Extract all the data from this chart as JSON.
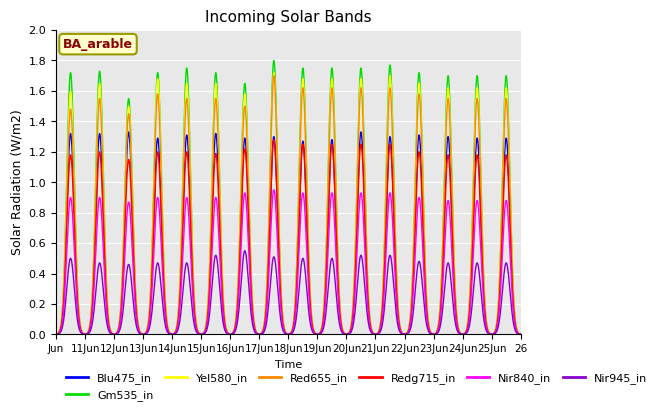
{
  "title": "Incoming Solar Bands",
  "xlabel": "Time",
  "ylabel": "Solar Radiation (W/m2)",
  "annotation": "BA_arable",
  "ylim": [
    0.0,
    2.0
  ],
  "yticks": [
    0.0,
    0.2,
    0.4,
    0.6,
    0.8,
    1.0,
    1.2,
    1.4,
    1.6,
    1.8,
    2.0
  ],
  "series": [
    {
      "name": "Blu475_in",
      "color": "#0000FF",
      "lw": 1.0
    },
    {
      "name": "Gm535_in",
      "color": "#00DD00",
      "lw": 1.0
    },
    {
      "name": "Yel580_in",
      "color": "#FFFF00",
      "lw": 1.0
    },
    {
      "name": "Red655_in",
      "color": "#FF8800",
      "lw": 1.0
    },
    {
      "name": "Redg715_in",
      "color": "#FF0000",
      "lw": 1.0
    },
    {
      "name": "Nir840_in",
      "color": "#FF00FF",
      "lw": 1.0
    },
    {
      "name": "Nir945_in",
      "color": "#8800CC",
      "lw": 1.0
    }
  ],
  "bg_color": "#E8E8E8",
  "fig_bg": "#FFFFFF",
  "xtick_labels": [
    "Jun",
    "11Jun",
    "12Jun",
    "13Jun",
    "14Jun",
    "15Jun",
    "16Jun",
    "17Jun",
    "18Jun",
    "19Jun",
    "20Jun",
    "21Jun",
    "22Jun",
    "23Jun",
    "24Jun",
    "25Jun",
    "26"
  ]
}
